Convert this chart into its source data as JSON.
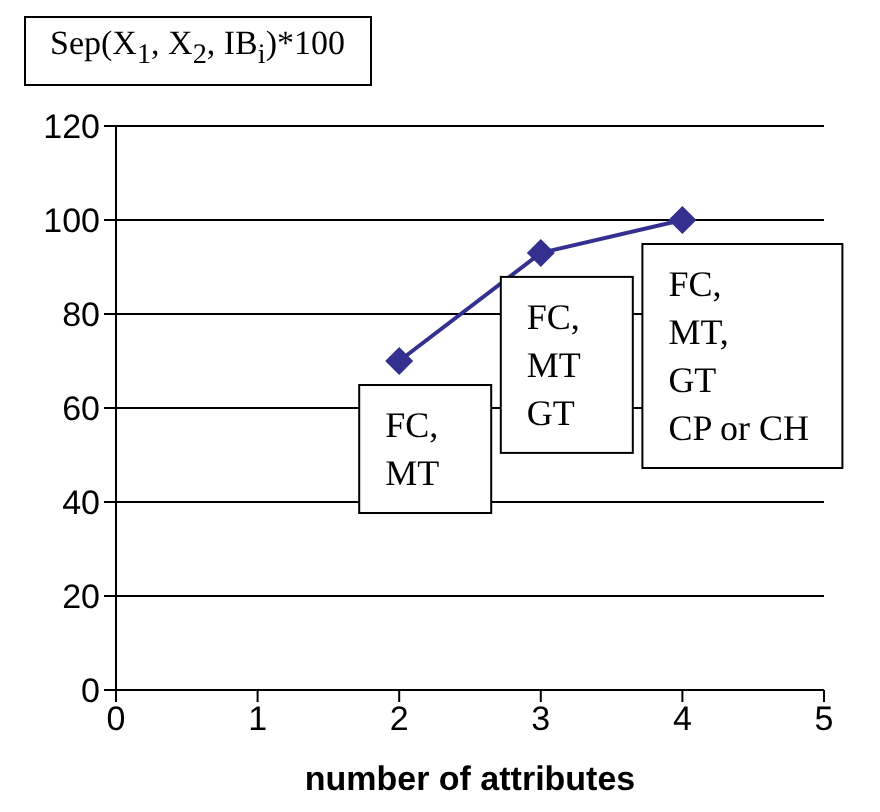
{
  "chart_data": {
    "type": "line",
    "ylabel": "Sep(X$_{1}$, X$_{2}$, IB$_{i}$)*100",
    "xlabel": "number of attributes",
    "x": [
      2,
      3,
      4
    ],
    "series": [
      {
        "color": "#33308f",
        "values": [
          70,
          93,
          100
        ]
      }
    ],
    "xlim": [
      0,
      5
    ],
    "xticks": [
      0,
      1,
      2,
      3,
      4,
      5
    ],
    "ylim": [
      0,
      120
    ],
    "yticks": [
      0,
      20,
      40,
      60,
      80,
      100,
      120
    ],
    "grid": "y",
    "legend": false,
    "marker": "diamond",
    "line_style": "solid",
    "annotations": [
      {
        "text": "FC,\nMT",
        "x": 2,
        "y": 70
      },
      {
        "text": "FC,\nMT\nGT",
        "x": 3,
        "y": 93
      },
      {
        "text": "FC,\nMT,\nGT\nCP or CH",
        "x": 4,
        "y": 100
      }
    ]
  }
}
